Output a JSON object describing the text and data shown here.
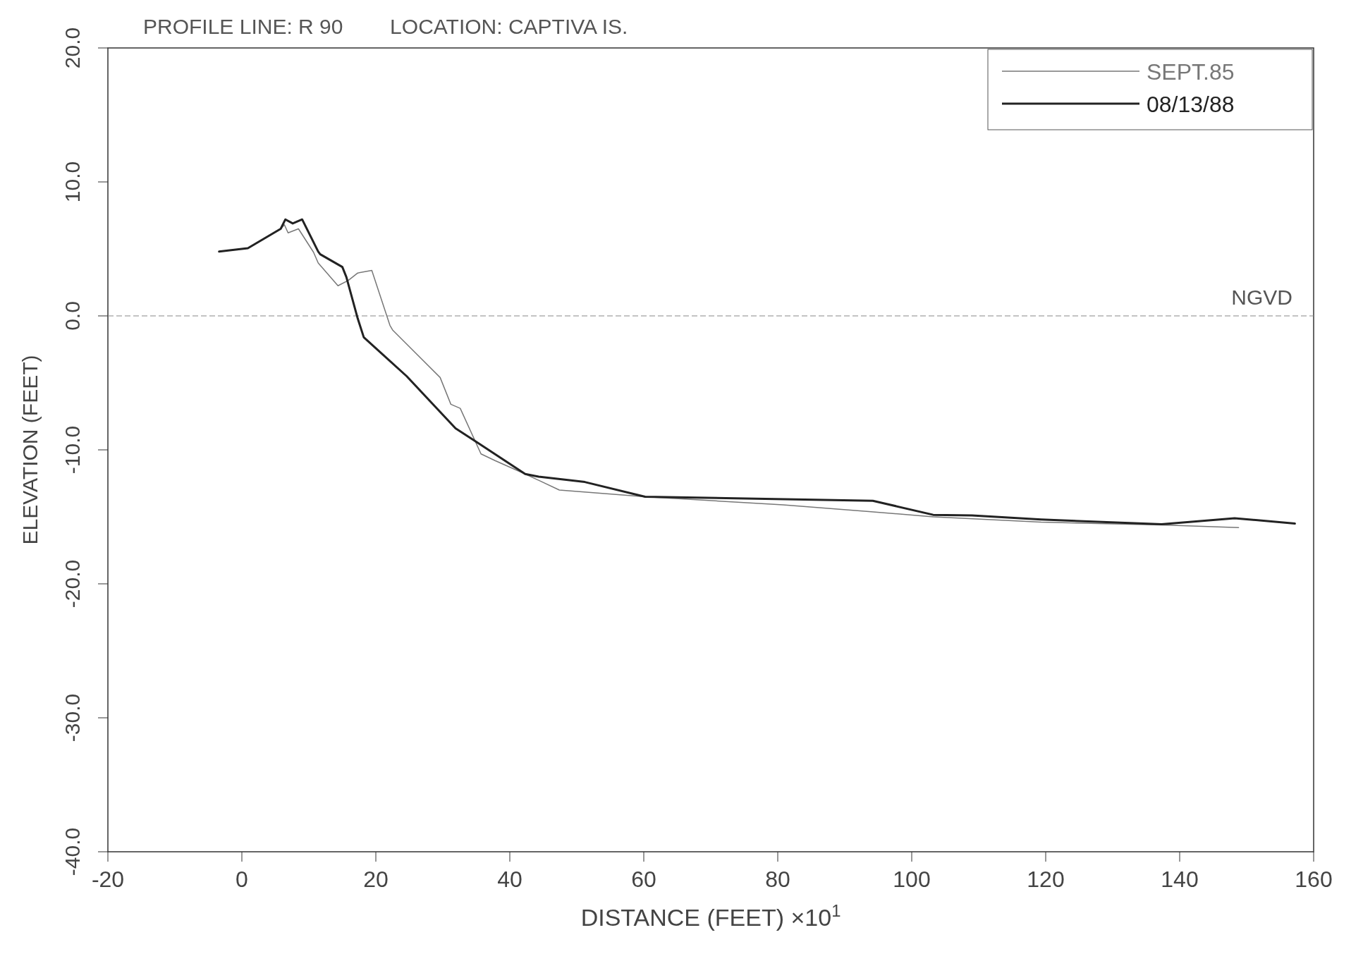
{
  "chart_data": {
    "type": "line",
    "title": "PROFILE LINE: R 90        LOCATION: CAPTIVA IS.",
    "xlabel": "DISTANCE (FEET)   ×10$^{1}$",
    "ylabel": "ELEVATION (FEET)",
    "xlim": [
      -20,
      160
    ],
    "xticks": [
      -20,
      0,
      20,
      40,
      60,
      80,
      100,
      120,
      140,
      160
    ],
    "ylim": [
      -40,
      20
    ],
    "yticks": [
      {
        "value": -40,
        "label": "-40.0"
      },
      {
        "value": -30,
        "label": "-30.0"
      },
      {
        "value": -20,
        "label": "-20.0"
      },
      {
        "value": -10,
        "label": "-10.0"
      },
      {
        "value": 0,
        "label": "0.0"
      },
      {
        "value": 10,
        "label": "10.0"
      },
      {
        "value": 20,
        "label": "20.0"
      }
    ],
    "grid": false,
    "legend": "top right",
    "marker": "none",
    "line_style": "solid",
    "ref_lines": [
      {
        "axis": "y",
        "value": 0,
        "label": "NGVD",
        "color": "#888888",
        "line_style": "dashed"
      }
    ],
    "series": [
      {
        "name": "SEPT.85",
        "color": "#777777",
        "x": [
          -3.4,
          0.9,
          5.8,
          6.35,
          6.9,
          8.45,
          10.7,
          11.4,
          14.35,
          15.9,
          17.3,
          19.4,
          22.1,
          22.5,
          29.6,
          31.2,
          32.6,
          35.7,
          37.8,
          42.3,
          47.4,
          60.2,
          80.8,
          93.6,
          103.2,
          119.3,
          137.3,
          148.8
        ],
        "values": [
          4.8,
          5.05,
          6.5,
          6.8,
          6.2,
          6.5,
          4.75,
          3.95,
          2.25,
          2.65,
          3.2,
          3.4,
          -0.7,
          -1.05,
          -4.6,
          -6.6,
          -6.9,
          -10.3,
          -10.8,
          -11.8,
          -13.0,
          -13.5,
          -14.1,
          -14.6,
          -15.0,
          -15.4,
          -15.6,
          -15.8
        ]
      },
      {
        "name": "08/13/88",
        "color": "#222222",
        "x": [
          -3.4,
          0.9,
          5.8,
          6.5,
          7.6,
          9.0,
          11.4,
          11.7,
          15.0,
          15.6,
          17.3,
          18.2,
          24.6,
          31.9,
          35.3,
          42.3,
          44.3,
          51.2,
          60.2,
          94.2,
          103.2,
          109,
          119.3,
          137.3,
          148.2,
          157.2
        ],
        "values": [
          4.8,
          5.05,
          6.5,
          7.2,
          6.9,
          7.2,
          4.8,
          4.6,
          3.65,
          2.9,
          -0.2,
          -1.6,
          -4.5,
          -8.4,
          -9.5,
          -11.8,
          -12.0,
          -12.4,
          -13.5,
          -13.8,
          -14.85,
          -14.9,
          -15.2,
          -15.55,
          -15.1,
          -15.5
        ]
      }
    ]
  }
}
